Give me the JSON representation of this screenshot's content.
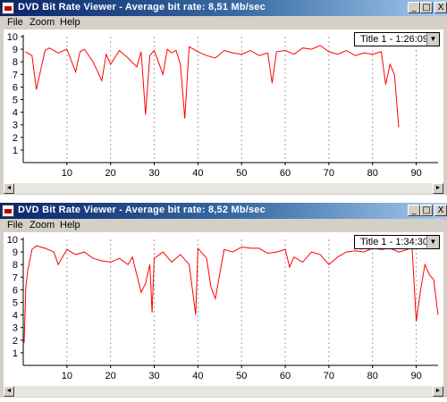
{
  "windows": [
    {
      "title": "DVD Bit Rate Viewer - Average bit rate: 8,51 Mb/sec",
      "menu": [
        "File",
        "Zoom",
        "Help"
      ],
      "controls": {
        "minimize": "_",
        "maximize": "□",
        "close": "X"
      },
      "dropdown_value": "Title 1 - 1:26:09",
      "scroll_left": "◄",
      "scroll_right": "►",
      "chart_data": {
        "type": "line",
        "xlim": [
          0,
          95
        ],
        "ylim": [
          0,
          10
        ],
        "x_ticks": [
          10,
          20,
          30,
          40,
          50,
          60,
          70,
          80,
          90
        ],
        "y_ticks": [
          1,
          2,
          3,
          4,
          5,
          6,
          7,
          8,
          9,
          10
        ],
        "grid": "vertical dotted",
        "series": [
          {
            "color": "#ff0000",
            "x": [
              0.5,
              2,
              3,
              5,
              6,
              8,
              10,
              12,
              13,
              14,
              16,
              18,
              19,
              20,
              22,
              24,
              26,
              27,
              28,
              29,
              30,
              32,
              33,
              34,
              35,
              36,
              37,
              38,
              40,
              42,
              44,
              46,
              48,
              50,
              52,
              54,
              56,
              57,
              58,
              60,
              62,
              64,
              66,
              68,
              70,
              72,
              74,
              76,
              78,
              80,
              82,
              83,
              84,
              85,
              86
            ],
            "y": [
              8.8,
              8.5,
              5.8,
              8.9,
              9.1,
              8.7,
              9.0,
              7.2,
              8.8,
              9.0,
              8.0,
              6.5,
              8.6,
              7.8,
              8.9,
              8.3,
              7.6,
              8.8,
              3.8,
              8.5,
              8.9,
              7.0,
              9.0,
              8.7,
              8.9,
              7.8,
              3.5,
              9.2,
              8.8,
              8.5,
              8.3,
              8.9,
              8.7,
              8.6,
              8.9,
              8.5,
              8.7,
              6.3,
              8.8,
              8.9,
              8.6,
              9.1,
              9.0,
              9.3,
              8.8,
              8.6,
              8.9,
              8.5,
              8.7,
              8.6,
              8.8,
              6.2,
              7.8,
              7.0,
              2.8
            ]
          }
        ]
      }
    },
    {
      "title": "DVD Bit Rate Viewer - Average bit rate: 8,52 Mb/sec",
      "menu": [
        "File",
        "Zoom",
        "Help"
      ],
      "controls": {
        "minimize": "_",
        "maximize": "□",
        "close": "X"
      },
      "dropdown_value": "Title 1 - 1:34:30",
      "scroll_left": "◄",
      "scroll_right": "►",
      "chart_data": {
        "type": "line",
        "xlim": [
          0,
          95
        ],
        "ylim": [
          0,
          10
        ],
        "x_ticks": [
          10,
          20,
          30,
          40,
          50,
          60,
          70,
          80,
          90
        ],
        "y_ticks": [
          1,
          2,
          3,
          4,
          5,
          6,
          7,
          8,
          9,
          10
        ],
        "grid": "vertical dotted",
        "series": [
          {
            "color": "#ff0000",
            "x": [
              0.2,
              0.6,
              1,
              2,
              3,
              5,
              7,
              8,
              10,
              12,
              14,
              16,
              18,
              20,
              22,
              24,
              25,
              26,
              27,
              28,
              29,
              29.5,
              30,
              32,
              34,
              36,
              38,
              39.5,
              40,
              42,
              43,
              44,
              46,
              48,
              50,
              52,
              54,
              56,
              58,
              60,
              61,
              62,
              64,
              66,
              68,
              70,
              72,
              74,
              76,
              78,
              80,
              82,
              84,
              86,
              88,
              89,
              90,
              91,
              92,
              93,
              94,
              95
            ],
            "y": [
              1.8,
              6.2,
              7.5,
              9.2,
              9.5,
              9.3,
              9.0,
              8.0,
              9.2,
              8.8,
              9.0,
              8.5,
              8.3,
              8.2,
              8.5,
              8.0,
              8.6,
              7.2,
              5.8,
              6.5,
              8.0,
              4.2,
              8.5,
              9.0,
              8.2,
              8.8,
              8.0,
              4.0,
              9.3,
              8.5,
              6.2,
              5.3,
              9.2,
              9.0,
              9.4,
              9.3,
              9.3,
              8.9,
              9.0,
              9.2,
              7.8,
              8.6,
              8.2,
              9.0,
              8.8,
              8.0,
              8.6,
              9.0,
              9.1,
              9.0,
              9.3,
              9.2,
              9.3,
              9.0,
              9.2,
              9.6,
              3.5,
              6.0,
              8.0,
              7.2,
              6.8,
              4.0
            ]
          }
        ]
      }
    }
  ]
}
